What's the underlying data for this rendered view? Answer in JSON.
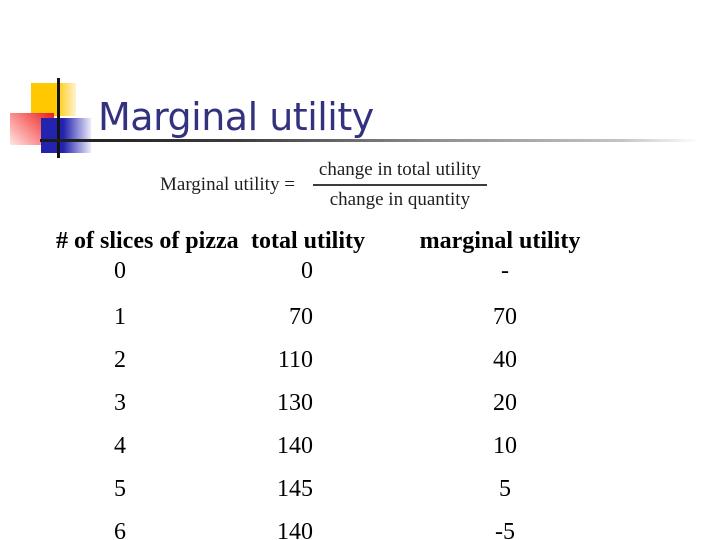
{
  "slide": {
    "title": "Marginal utility",
    "colors": {
      "title_text": "#32327f",
      "accent_yellow": "#ffc800",
      "accent_red": "#e81c1c",
      "accent_blue": "#2323b0",
      "rule_gray": "#8f8f8f"
    }
  },
  "formula": {
    "lhs": "Marginal utility =",
    "numerator": "change in total utility",
    "denominator": "change in quantity"
  },
  "table": {
    "headers": {
      "slices": "# of slices of pizza",
      "total": "total utility",
      "marginal": "marginal utility"
    },
    "rows": [
      {
        "slices": "0",
        "total": "0",
        "marginal": "-"
      },
      {
        "slices": "1",
        "total": "70",
        "marginal": "70"
      },
      {
        "slices": "2",
        "total": "110",
        "marginal": "40"
      },
      {
        "slices": "3",
        "total": "130",
        "marginal": "20"
      },
      {
        "slices": "4",
        "total": "140",
        "marginal": "10"
      },
      {
        "slices": "5",
        "total": "145",
        "marginal": "5"
      },
      {
        "slices": "6",
        "total": "140",
        "marginal": "-5"
      }
    ]
  },
  "chart_data": {
    "type": "table",
    "title": "Marginal utility",
    "columns": [
      "# of slices of pizza",
      "total utility",
      "marginal utility"
    ],
    "rows": [
      [
        0,
        0,
        "-"
      ],
      [
        1,
        70,
        70
      ],
      [
        2,
        110,
        40
      ],
      [
        3,
        130,
        20
      ],
      [
        4,
        140,
        10
      ],
      [
        5,
        145,
        5
      ],
      [
        6,
        140,
        -5
      ]
    ]
  }
}
